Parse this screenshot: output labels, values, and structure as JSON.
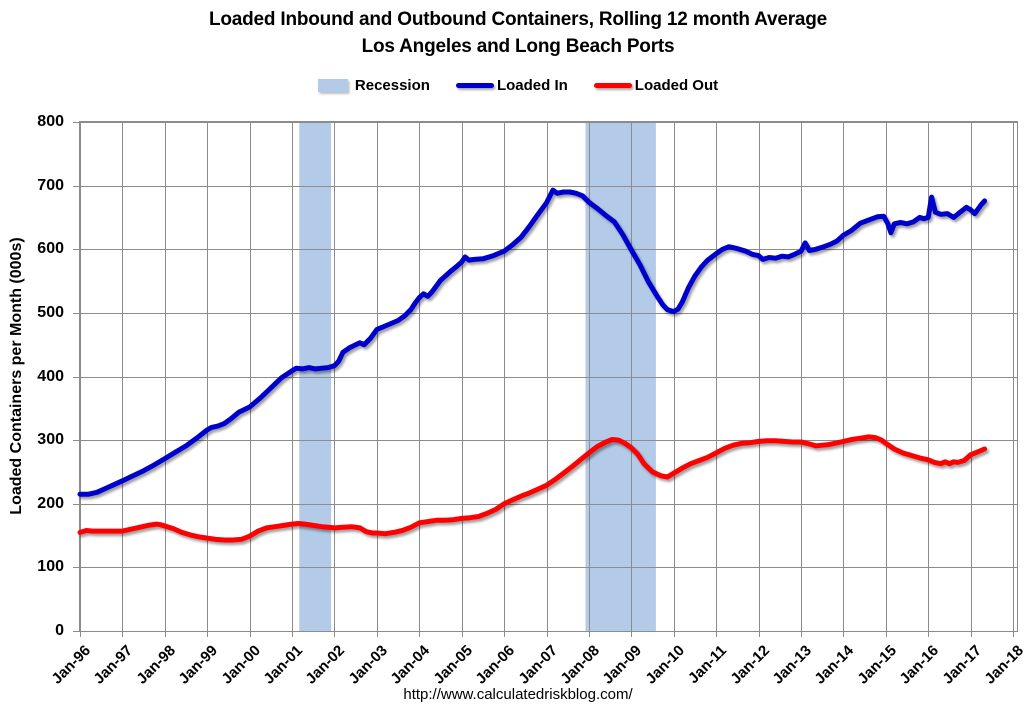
{
  "title": {
    "line1": "Loaded Inbound and Outbound Containers, Rolling 12 month Average",
    "line2": "Los Angeles and Long Beach Ports"
  },
  "legend": {
    "items": [
      {
        "label": "Recession",
        "swatch": "box",
        "color": "#B3CBE8"
      },
      {
        "label": "Loaded In",
        "swatch": "line",
        "color": "#0000CD"
      },
      {
        "label": "Loaded Out",
        "swatch": "line",
        "color": "#FF0000"
      }
    ]
  },
  "footer_url": "http://www.calculatedriskblog.com/",
  "chart_data": {
    "type": "line",
    "title": "Loaded Inbound and Outbound Containers, Rolling 12 month Average — Los Angeles and Long Beach Ports",
    "xlabel": "",
    "ylabel": "Loaded Containers per Month (000s)",
    "ylim": [
      0,
      800
    ],
    "yticks": [
      0,
      100,
      200,
      300,
      400,
      500,
      600,
      700,
      800
    ],
    "xlim": [
      1996,
      2018
    ],
    "xticks": [
      1996,
      1997,
      1998,
      1999,
      2000,
      2001,
      2002,
      2003,
      2004,
      2005,
      2006,
      2007,
      2008,
      2009,
      2010,
      2011,
      2012,
      2013,
      2014,
      2015,
      2016,
      2017,
      2018
    ],
    "xtick_labels": [
      "Jan-96",
      "Jan-97",
      "Jan-98",
      "Jan-99",
      "Jan-00",
      "Jan-01",
      "Jan-02",
      "Jan-03",
      "Jan-04",
      "Jan-05",
      "Jan-06",
      "Jan-07",
      "Jan-08",
      "Jan-09",
      "Jan-10",
      "Jan-11",
      "Jan-12",
      "Jan-13",
      "Jan-14",
      "Jan-15",
      "Jan-16",
      "Jan-17",
      "Jan-18"
    ],
    "grid": true,
    "legend_position": "top",
    "gridline_color": "#8C8C8C",
    "recession_color": "#B3CBE8",
    "recession_bands": [
      [
        2001.17,
        2001.92
      ],
      [
        2007.92,
        2009.58
      ]
    ],
    "series": [
      {
        "name": "Loaded In",
        "color": "#0000CD",
        "x": [
          1996.0,
          1996.2,
          1996.4,
          1996.6,
          1996.8,
          1997.0,
          1997.25,
          1997.5,
          1997.75,
          1998.0,
          1998.25,
          1998.5,
          1998.75,
          1999.0,
          1999.1,
          1999.25,
          1999.4,
          1999.55,
          1999.75,
          2000.0,
          2000.25,
          2000.5,
          2000.75,
          2001.0,
          2001.1,
          2001.25,
          2001.4,
          2001.55,
          2001.7,
          2001.85,
          2002.0,
          2002.1,
          2002.2,
          2002.35,
          2002.5,
          2002.6,
          2002.7,
          2002.85,
          2003.0,
          2003.25,
          2003.5,
          2003.65,
          2003.8,
          2003.9,
          2004.0,
          2004.1,
          2004.2,
          2004.3,
          2004.5,
          2004.75,
          2004.9,
          2005.0,
          2005.08,
          2005.17,
          2005.3,
          2005.5,
          2005.75,
          2006.0,
          2006.2,
          2006.4,
          2006.6,
          2006.8,
          2007.0,
          2007.15,
          2007.25,
          2007.4,
          2007.55,
          2007.7,
          2007.85,
          2008.0,
          2008.2,
          2008.4,
          2008.6,
          2008.8,
          2009.0,
          2009.2,
          2009.4,
          2009.6,
          2009.75,
          2009.85,
          2010.0,
          2010.1,
          2010.2,
          2010.35,
          2010.5,
          2010.65,
          2010.8,
          2011.0,
          2011.15,
          2011.3,
          2011.5,
          2011.7,
          2011.85,
          2012.0,
          2012.1,
          2012.25,
          2012.4,
          2012.55,
          2012.7,
          2012.85,
          2013.0,
          2013.1,
          2013.2,
          2013.35,
          2013.5,
          2013.7,
          2013.85,
          2014.0,
          2014.2,
          2014.4,
          2014.6,
          2014.8,
          2014.95,
          2015.05,
          2015.12,
          2015.2,
          2015.35,
          2015.5,
          2015.65,
          2015.8,
          2015.9,
          2016.0,
          2016.08,
          2016.17,
          2016.3,
          2016.45,
          2016.6,
          2016.75,
          2016.9,
          2017.0,
          2017.1,
          2017.25,
          2017.33
        ],
        "y": [
          215,
          215,
          218,
          224,
          230,
          236,
          244,
          252,
          261,
          271,
          281,
          291,
          303,
          316,
          320,
          322,
          326,
          333,
          344,
          352,
          366,
          382,
          398,
          409,
          413,
          412,
          414,
          412,
          413,
          414,
          417,
          424,
          438,
          445,
          450,
          453,
          450,
          460,
          474,
          481,
          488,
          495,
          505,
          515,
          524,
          530,
          526,
          533,
          551,
          566,
          574,
          580,
          588,
          583,
          584,
          585,
          590,
          597,
          607,
          619,
          636,
          655,
          673,
          693,
          688,
          690,
          690,
          688,
          684,
          674,
          664,
          653,
          643,
          623,
          599,
          576,
          549,
          527,
          512,
          505,
          502,
          506,
          517,
          540,
          558,
          572,
          583,
          593,
          600,
          604,
          601,
          597,
          592,
          590,
          584,
          587,
          586,
          589,
          588,
          592,
          597,
          610,
          598,
          600,
          603,
          608,
          613,
          622,
          630,
          641,
          646,
          651,
          652,
          640,
          626,
          640,
          642,
          640,
          643,
          650,
          648,
          650,
          682,
          658,
          655,
          656,
          650,
          658,
          666,
          662,
          656,
          670,
          676
        ]
      },
      {
        "name": "Loaded Out",
        "color": "#FF0000",
        "x": [
          1996.0,
          1996.15,
          1996.3,
          1996.5,
          1996.75,
          1997.0,
          1997.2,
          1997.4,
          1997.6,
          1997.8,
          1997.9,
          1998.0,
          1998.2,
          1998.4,
          1998.6,
          1998.8,
          1999.0,
          1999.2,
          1999.4,
          1999.6,
          1999.8,
          2000.0,
          2000.2,
          2000.4,
          2000.6,
          2000.8,
          2001.0,
          2001.15,
          2001.3,
          2001.5,
          2001.7,
          2001.85,
          2002.0,
          2002.2,
          2002.4,
          2002.6,
          2002.75,
          2002.9,
          2003.0,
          2003.2,
          2003.4,
          2003.6,
          2003.8,
          2004.0,
          2004.2,
          2004.4,
          2004.6,
          2004.8,
          2005.0,
          2005.2,
          2005.4,
          2005.6,
          2005.8,
          2006.0,
          2006.2,
          2006.4,
          2006.6,
          2006.8,
          2007.0,
          2007.2,
          2007.4,
          2007.6,
          2007.8,
          2008.0,
          2008.2,
          2008.4,
          2008.55,
          2008.7,
          2008.85,
          2009.0,
          2009.15,
          2009.3,
          2009.5,
          2009.7,
          2009.85,
          2010.0,
          2010.2,
          2010.4,
          2010.6,
          2010.8,
          2011.0,
          2011.2,
          2011.4,
          2011.6,
          2011.8,
          2012.0,
          2012.2,
          2012.4,
          2012.6,
          2012.8,
          2013.0,
          2013.2,
          2013.35,
          2013.5,
          2013.65,
          2013.8,
          2014.0,
          2014.2,
          2014.4,
          2014.6,
          2014.75,
          2014.9,
          2015.0,
          2015.2,
          2015.4,
          2015.6,
          2015.8,
          2016.0,
          2016.15,
          2016.3,
          2016.4,
          2016.5,
          2016.6,
          2016.7,
          2016.85,
          2017.0,
          2017.15,
          2017.33
        ],
        "y": [
          155,
          158,
          157,
          157,
          157,
          157,
          160,
          163,
          166,
          168,
          167,
          165,
          161,
          155,
          151,
          148,
          146,
          144,
          143,
          143,
          144,
          149,
          157,
          162,
          164,
          166,
          168,
          169,
          168,
          166,
          164,
          163,
          162,
          163,
          164,
          162,
          156,
          154,
          154,
          153,
          155,
          158,
          163,
          170,
          172,
          174,
          174,
          175,
          177,
          178,
          180,
          185,
          191,
          200,
          206,
          212,
          217,
          223,
          229,
          238,
          248,
          258,
          269,
          280,
          290,
          297,
          301,
          300,
          295,
          288,
          278,
          263,
          250,
          244,
          242,
          248,
          256,
          263,
          268,
          273,
          280,
          287,
          292,
          295,
          296,
          298,
          299,
          299,
          298,
          297,
          297,
          294,
          291,
          292,
          293,
          295,
          298,
          301,
          303,
          305,
          304,
          300,
          295,
          286,
          280,
          276,
          272,
          269,
          265,
          263,
          266,
          263,
          266,
          265,
          268,
          277,
          281,
          286
        ]
      }
    ]
  }
}
